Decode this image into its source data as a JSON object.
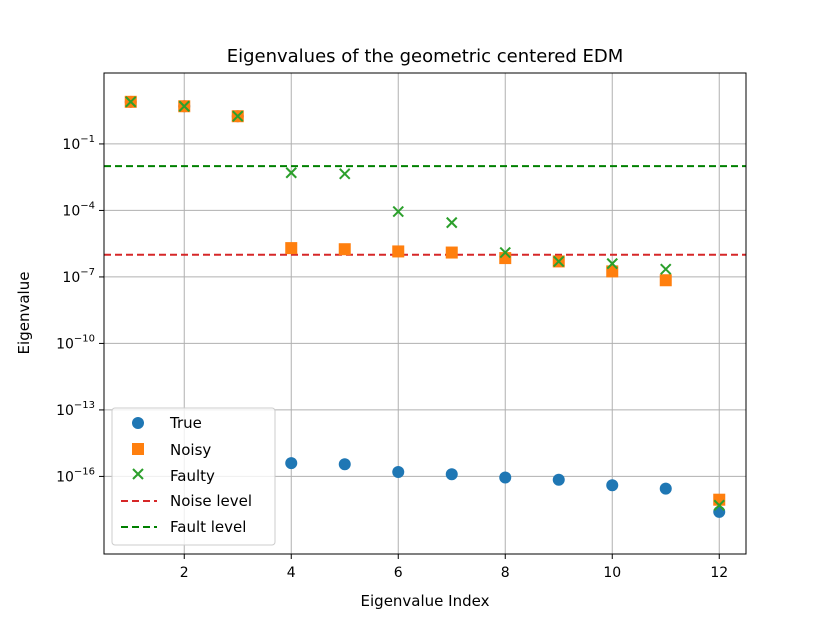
{
  "chart_data": {
    "type": "scatter",
    "title": "Eigenvalues of the geometric centered EDM",
    "xlabel": "Eigenvalue Index",
    "ylabel": "Eigenvalue",
    "xlim": [
      0.5,
      12.5
    ],
    "ylim_log10": [
      -19.5,
      2.2
    ],
    "yscale": "log",
    "grid": true,
    "legend_position": "lower-left",
    "x_ticks": [
      2,
      4,
      6,
      8,
      10,
      12
    ],
    "x_tick_labels": [
      "2",
      "4",
      "6",
      "8",
      "10",
      "12"
    ],
    "y_ticks_log10": [
      -1,
      -4,
      -7,
      -10,
      -13,
      -16
    ],
    "y_tick_labels": [
      {
        "base": "10",
        "exp": "−1"
      },
      {
        "base": "10",
        "exp": "−4"
      },
      {
        "base": "10",
        "exp": "−7"
      },
      {
        "base": "10",
        "exp": "−10"
      },
      {
        "base": "10",
        "exp": "−13"
      },
      {
        "base": "10",
        "exp": "−16"
      }
    ],
    "series": [
      {
        "name": "True",
        "marker": "circle",
        "color": "#1f77b4",
        "x": [
          1,
          2,
          3,
          4,
          5,
          6,
          7,
          8,
          9,
          10,
          11,
          12
        ],
        "log10_values": [
          0.9,
          0.7,
          0.25,
          -15.4,
          -15.45,
          -15.8,
          -15.9,
          -16.05,
          -16.15,
          -16.4,
          -16.55,
          -17.6
        ]
      },
      {
        "name": "Noisy",
        "marker": "square",
        "color": "#ff7f0e",
        "x": [
          1,
          2,
          3,
          4,
          5,
          6,
          7,
          8,
          9,
          10,
          11,
          12
        ],
        "log10_values": [
          0.9,
          0.7,
          0.25,
          -5.7,
          -5.75,
          -5.85,
          -5.9,
          -6.15,
          -6.3,
          -6.75,
          -7.15,
          -17.05
        ]
      },
      {
        "name": "Faulty",
        "marker": "x",
        "color": "#2ca02c",
        "x": [
          1,
          2,
          3,
          4,
          5,
          6,
          7,
          8,
          9,
          10,
          11,
          12
        ],
        "log10_values": [
          0.9,
          0.7,
          0.25,
          -2.3,
          -2.35,
          -4.05,
          -4.55,
          -5.9,
          -6.3,
          -6.4,
          -6.65,
          -17.3
        ]
      }
    ],
    "reference_lines": [
      {
        "name": "Noise level",
        "color": "#d62728",
        "style": "dashed",
        "log10_value": -6.0
      },
      {
        "name": "Fault level",
        "color": "#008000",
        "style": "dashed",
        "log10_value": -2.0
      }
    ]
  }
}
